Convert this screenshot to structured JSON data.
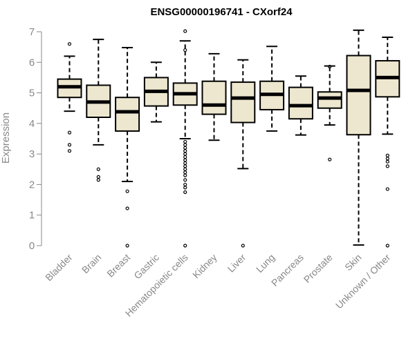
{
  "chart_data": {
    "type": "boxplot",
    "title": "ENSG00000196741 - CXorf24",
    "ylabel": "Expression",
    "xlabel": "",
    "ylim": [
      0,
      7
    ],
    "yticks": [
      0,
      1,
      2,
      3,
      4,
      5,
      6,
      7
    ],
    "box_fill": "#ede7cf",
    "categories": [
      "Bladder",
      "Brain",
      "Breast",
      "Gastric",
      "Hematopoietic cells",
      "Kidney",
      "Liver",
      "Lung",
      "Pancreas",
      "Prostate",
      "Skin",
      "Unknown / Other"
    ],
    "boxes": [
      {
        "q1": 4.85,
        "median": 5.2,
        "q3": 5.45,
        "whisker_low": 4.4,
        "whisker_high": 6.2,
        "outliers": [
          6.6,
          3.7,
          3.3,
          3.1
        ]
      },
      {
        "q1": 4.2,
        "median": 4.7,
        "q3": 5.25,
        "whisker_low": 3.3,
        "whisker_high": 6.75,
        "outliers": [
          2.5,
          2.25,
          2.15
        ]
      },
      {
        "q1": 3.75,
        "median": 4.38,
        "q3": 4.85,
        "whisker_low": 2.1,
        "whisker_high": 6.48,
        "outliers": [
          1.78,
          1.22,
          0.0
        ]
      },
      {
        "q1": 4.57,
        "median": 5.05,
        "q3": 5.5,
        "whisker_low": 4.05,
        "whisker_high": 6.0,
        "outliers": []
      },
      {
        "q1": 4.6,
        "median": 4.97,
        "q3": 5.32,
        "whisker_low": 3.5,
        "whisker_high": 6.7,
        "outliers": [
          7.02,
          6.4,
          3.4,
          3.3,
          3.2,
          3.1,
          3.0,
          2.9,
          2.8,
          2.7,
          2.6,
          2.5,
          2.4,
          2.3,
          2.15,
          2.0,
          1.9,
          1.75,
          0.0
        ]
      },
      {
        "q1": 4.3,
        "median": 4.6,
        "q3": 5.38,
        "whisker_low": 3.45,
        "whisker_high": 6.28,
        "outliers": []
      },
      {
        "q1": 4.03,
        "median": 4.83,
        "q3": 5.35,
        "whisker_low": 2.52,
        "whisker_high": 6.08,
        "outliers": [
          0.0
        ]
      },
      {
        "q1": 4.45,
        "median": 4.95,
        "q3": 5.38,
        "whisker_low": 3.75,
        "whisker_high": 6.52,
        "outliers": []
      },
      {
        "q1": 4.15,
        "median": 4.58,
        "q3": 5.18,
        "whisker_low": 3.62,
        "whisker_high": 5.55,
        "outliers": []
      },
      {
        "q1": 4.5,
        "median": 4.83,
        "q3": 5.03,
        "whisker_low": 3.95,
        "whisker_high": 5.88,
        "outliers": [
          5.86,
          2.82
        ]
      },
      {
        "q1": 3.63,
        "median": 5.08,
        "q3": 6.22,
        "whisker_low": 0.02,
        "whisker_high": 7.05,
        "outliers": []
      },
      {
        "q1": 4.87,
        "median": 5.5,
        "q3": 6.05,
        "whisker_low": 3.65,
        "whisker_high": 6.82,
        "outliers": [
          2.95,
          2.85,
          2.75,
          2.6,
          1.85,
          0.0
        ]
      }
    ]
  }
}
